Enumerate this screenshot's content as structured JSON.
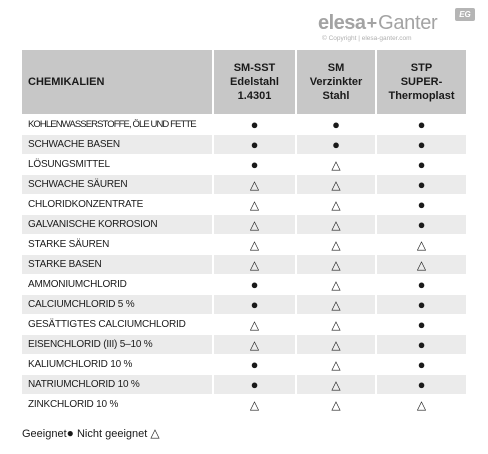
{
  "logo": {
    "brand_left": "elesa",
    "plus": "+",
    "brand_right": "Ganter",
    "badge": "EG",
    "copyright": "© Copyright | elesa-ganter.com"
  },
  "table": {
    "header": {
      "col0": "CHEMIKALIEN",
      "col1": [
        "SM-SST",
        "Edelstahl",
        "1.4301"
      ],
      "col2": [
        "SM",
        "Verzinkter",
        "Stahl"
      ],
      "col3": [
        "STP",
        "SUPER-",
        "Thermoplast"
      ]
    },
    "rows": [
      {
        "name": "KOHLENWASSERSTOFFE, ÖLE UND FETTE",
        "sst": "●",
        "sm": "●",
        "stp": "●"
      },
      {
        "name": "SCHWACHE BASEN",
        "sst": "●",
        "sm": "●",
        "stp": "●"
      },
      {
        "name": "LÖSUNGSMITTEL",
        "sst": "●",
        "sm": "△",
        "stp": "●"
      },
      {
        "name": "SCHWACHE SÄUREN",
        "sst": "△",
        "sm": "△",
        "stp": "●"
      },
      {
        "name": "CHLORIDKONZENTRATE",
        "sst": "△",
        "sm": "△",
        "stp": "●"
      },
      {
        "name": "GALVANISCHE KORROSION",
        "sst": "△",
        "sm": "△",
        "stp": "●"
      },
      {
        "name": "STARKE SÄUREN",
        "sst": "△",
        "sm": "△",
        "stp": "△"
      },
      {
        "name": "STARKE BASEN",
        "sst": "△",
        "sm": "△",
        "stp": "△"
      },
      {
        "name": "AMMONIUMCHLORID",
        "sst": "●",
        "sm": "△",
        "stp": "●"
      },
      {
        "name": "CALCIUMCHLORID 5 %",
        "sst": "●",
        "sm": "△",
        "stp": "●"
      },
      {
        "name": "GESÄTTIGTES CALCIUMCHLORID",
        "sst": "△",
        "sm": "△",
        "stp": "●"
      },
      {
        "name": "EISENCHLORID (III) 5–10 %",
        "sst": "△",
        "sm": "△",
        "stp": "●"
      },
      {
        "name": "KALIUMCHLORID 10 %",
        "sst": "●",
        "sm": "△",
        "stp": "●"
      },
      {
        "name": "NATRIUMCHLORID 10 %",
        "sst": "●",
        "sm": "△",
        "stp": "●"
      },
      {
        "name": "ZINKCHLORID 10 %",
        "sst": "△",
        "sm": "△",
        "stp": "△"
      }
    ]
  },
  "legend": {
    "suitable_label": "Geeignet",
    "suitable_symbol": "●",
    "unsuitable_label": "Nicht geeignet",
    "unsuitable_symbol": "△"
  }
}
